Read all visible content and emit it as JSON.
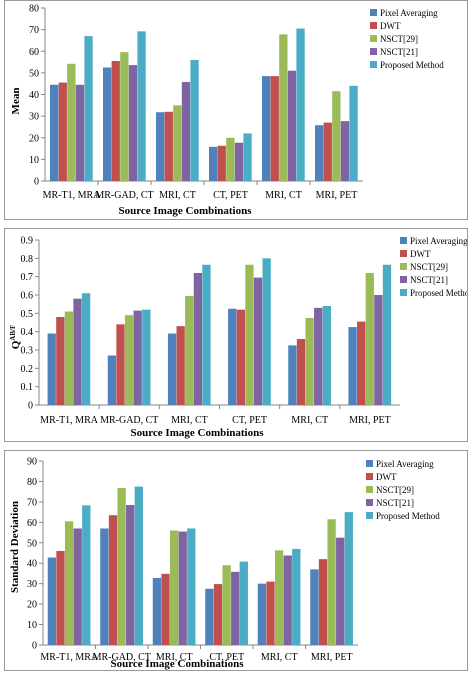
{
  "colors": [
    "#4f81bd",
    "#c0504d",
    "#9bbb59",
    "#8064a2",
    "#4bacc6"
  ],
  "chart_data": [
    {
      "type": "bar",
      "title": "",
      "categories": [
        "MR-T1, MRA",
        "MR-GAD, CT",
        "MRI, CT",
        "CT, PET",
        "MRI, CT",
        "MRI, PET"
      ],
      "series": [
        {
          "name": "Pixel Averaging",
          "values": [
            44.5,
            52.5,
            31.8,
            15.8,
            48.5,
            25.8
          ]
        },
        {
          "name": "DWT",
          "values": [
            45.5,
            55.5,
            32.0,
            16.3,
            48.5,
            27.0
          ]
        },
        {
          "name": "NSCT[29]",
          "values": [
            54.2,
            59.6,
            35.0,
            20.0,
            67.8,
            41.5
          ]
        },
        {
          "name": "NSCT[21]",
          "values": [
            44.5,
            53.6,
            45.8,
            17.7,
            51.0,
            27.7
          ]
        },
        {
          "name": "Proposed Method",
          "values": [
            67.0,
            69.2,
            56.0,
            22.0,
            70.5,
            44.0
          ]
        }
      ],
      "xlabel": "Source Image Combinations",
      "ylabel": "Mean",
      "ylim": [
        0,
        80
      ],
      "yticks": [
        "0",
        "10",
        "20",
        "30",
        "40",
        "50",
        "60",
        "70",
        "80"
      ],
      "legend_position": "right",
      "grid": false
    },
    {
      "type": "bar",
      "title": "",
      "categories": [
        "MR-T1, MRA",
        "MR-GAD, CT",
        "MRI, CT",
        "CT, PET",
        "MRI, CT",
        "MRI, PET"
      ],
      "series": [
        {
          "name": "Pixel Averaging",
          "values": [
            0.39,
            0.27,
            0.39,
            0.525,
            0.325,
            0.425
          ]
        },
        {
          "name": "DWT",
          "values": [
            0.48,
            0.44,
            0.43,
            0.52,
            0.36,
            0.455
          ]
        },
        {
          "name": "NSCT[29]",
          "values": [
            0.51,
            0.49,
            0.595,
            0.765,
            0.475,
            0.72
          ]
        },
        {
          "name": "NSCT[21]",
          "values": [
            0.58,
            0.515,
            0.72,
            0.695,
            0.53,
            0.6
          ]
        },
        {
          "name": "Proposed Method",
          "values": [
            0.61,
            0.52,
            0.765,
            0.8,
            0.54,
            0.765
          ]
        }
      ],
      "xlabel": "Source Image Combinations",
      "ylabel": "Q",
      "ylabel_superscript": "AB/F",
      "ylim": [
        0,
        0.9
      ],
      "yticks": [
        "0",
        "0.1",
        "0.2",
        "0.3",
        "0.4",
        "0.5",
        "0.6",
        "0.7",
        "0.8",
        "0.9"
      ],
      "legend_position": "right",
      "grid": false
    },
    {
      "type": "bar",
      "title": "",
      "categories": [
        "MR-T1, MRA",
        "MR-GAD, CT",
        "MRI, CT",
        "CT, PET",
        "MRI, CT",
        "MRI, PET"
      ],
      "series": [
        {
          "name": "Pixel Averaging",
          "values": [
            42.8,
            57.0,
            32.8,
            27.5,
            30.0,
            37.0
          ]
        },
        {
          "name": "DWT",
          "values": [
            46.0,
            63.5,
            34.8,
            29.8,
            31.0,
            42.0
          ]
        },
        {
          "name": "NSCT[29]",
          "values": [
            60.5,
            76.8,
            56.0,
            39.0,
            46.3,
            61.5
          ]
        },
        {
          "name": "NSCT[21]",
          "values": [
            57.0,
            68.5,
            55.5,
            35.8,
            43.8,
            52.5
          ]
        },
        {
          "name": "Proposed Method",
          "values": [
            68.3,
            77.5,
            57.0,
            40.8,
            47.0,
            65.0
          ]
        }
      ],
      "xlabel": "Source Image Combinations",
      "ylabel": "Standard Deviation",
      "ylim": [
        0,
        90
      ],
      "yticks": [
        "0",
        "10",
        "20",
        "30",
        "40",
        "50",
        "60",
        "70",
        "80",
        "90"
      ],
      "legend_position": "right",
      "grid": false
    }
  ]
}
